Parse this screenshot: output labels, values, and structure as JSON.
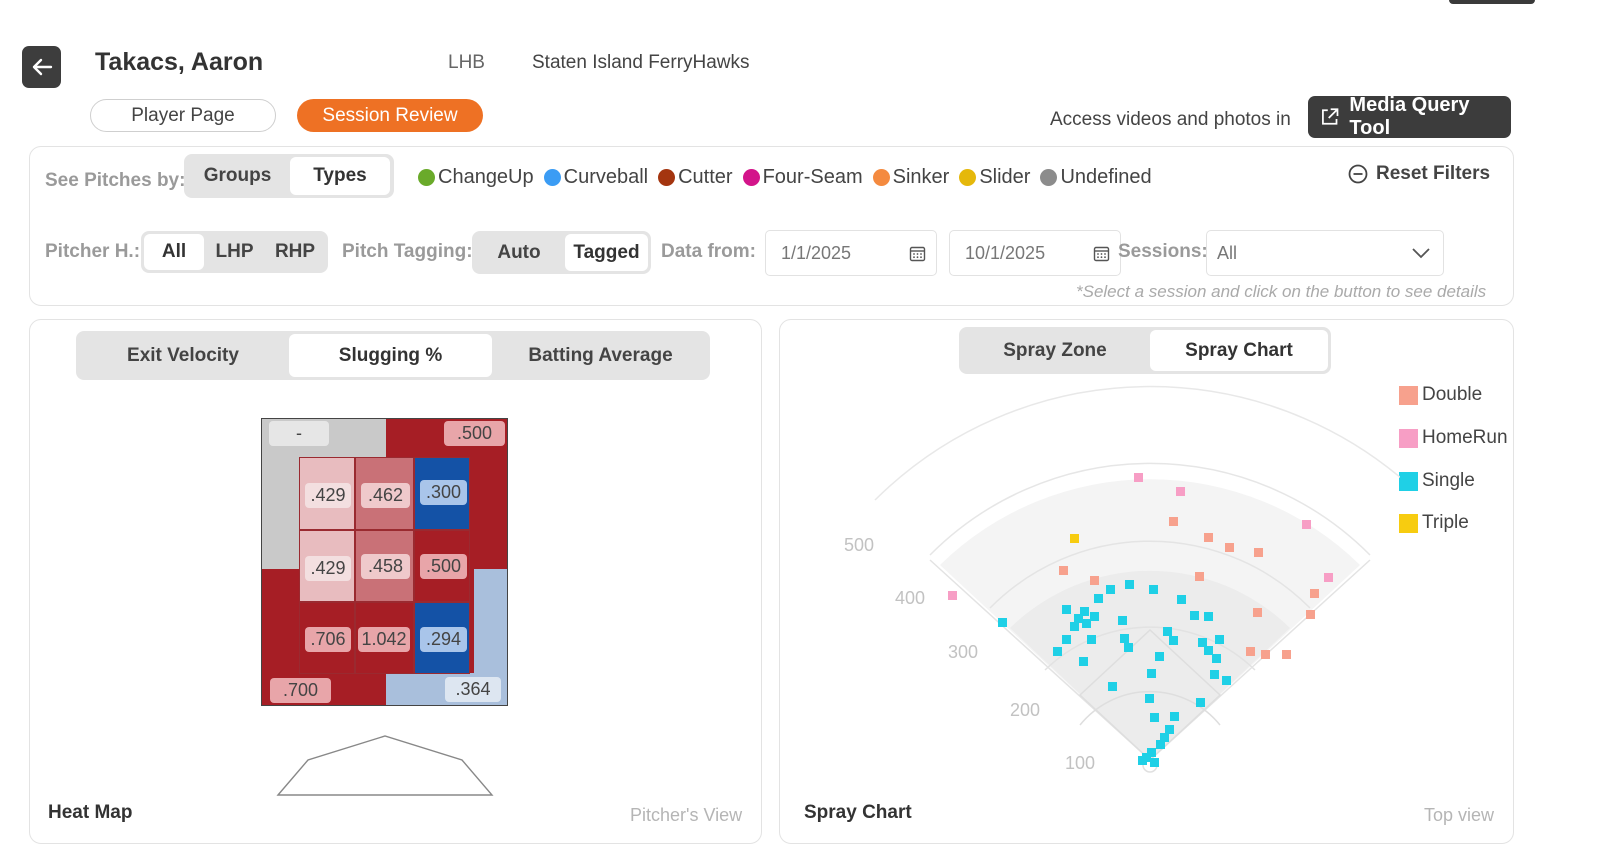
{
  "header": {
    "player_name": "Takacs, Aaron",
    "handedness": "LHB",
    "team": "Staten Island FerryHawks",
    "tabs": [
      "Player Page",
      "Session Review"
    ],
    "active_tab": "Session Review",
    "access_text": "Access videos and photos in",
    "media_button": "Media Query Tool"
  },
  "filters": {
    "see_pitches_label": "See Pitches by:",
    "see_pitches_options": [
      "Groups",
      "Types"
    ],
    "see_pitches_active": "Types",
    "pitch_types": [
      {
        "name": "ChangeUp",
        "color": "#6aaa2a"
      },
      {
        "name": "Curveball",
        "color": "#3b9cf4"
      },
      {
        "name": "Cutter",
        "color": "#a4350f"
      },
      {
        "name": "Four-Seam",
        "color": "#d3148a"
      },
      {
        "name": "Sinker",
        "color": "#f48a3f"
      },
      {
        "name": "Slider",
        "color": "#e5b80b"
      },
      {
        "name": "Undefined",
        "color": "#8c8c8c"
      }
    ],
    "reset_label": "Reset Filters",
    "pitcher_hand_label": "Pitcher H.:",
    "pitcher_hand_options": [
      "All",
      "LHP",
      "RHP"
    ],
    "pitcher_hand_active": "All",
    "pitch_tagging_label": "Pitch Tagging:",
    "pitch_tagging_options": [
      "Auto",
      "Tagged"
    ],
    "pitch_tagging_active": "Tagged",
    "data_from_label": "Data from:",
    "date_from": "1/1/2025",
    "date_to": "10/1/2025",
    "sessions_label": "Sessions:",
    "sessions_value": "All",
    "note": "*Select a session and click on the button to see details"
  },
  "heatmap_panel": {
    "tabs": [
      "Exit Velocity",
      "Slugging %",
      "Batting Average"
    ],
    "active_tab": "Slugging %",
    "title": "Heat Map",
    "view_label": "Pitcher's View",
    "outer": {
      "top_left": "-",
      "top_right": ".500",
      "bottom_left": ".700",
      "bottom_right": ".364"
    },
    "grid": [
      [
        ".429",
        ".462",
        ".300"
      ],
      [
        ".429",
        ".458",
        ".500"
      ],
      [
        ".706",
        "1.042",
        ".294"
      ]
    ]
  },
  "spray_panel": {
    "tabs": [
      "Spray Zone",
      "Spray Chart"
    ],
    "active_tab": "Spray Chart",
    "title": "Spray Chart",
    "view_label": "Top view",
    "distance_labels": [
      "500",
      "400",
      "300",
      "200",
      "100"
    ],
    "legend": [
      {
        "name": "Double",
        "color": "#f7a18d"
      },
      {
        "name": "HomeRun",
        "color": "#f79ec5"
      },
      {
        "name": "Single",
        "color": "#1fd0e6"
      },
      {
        "name": "Triple",
        "color": "#f7cc10"
      }
    ]
  }
}
